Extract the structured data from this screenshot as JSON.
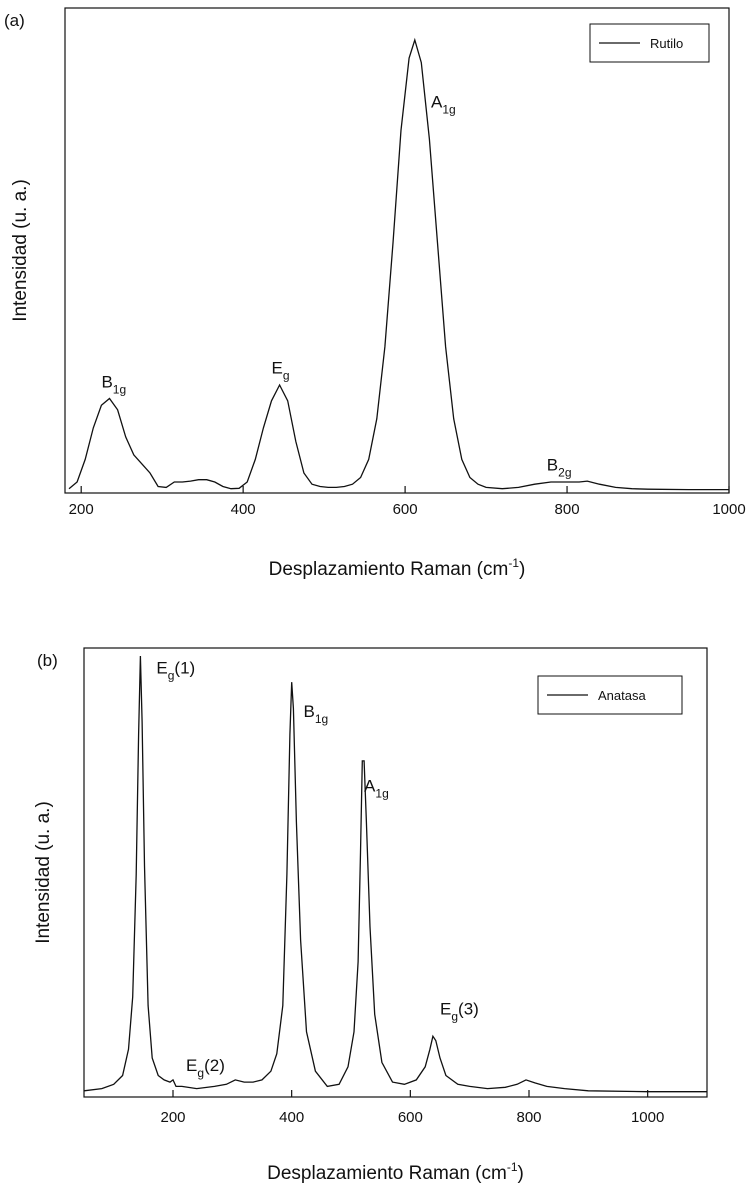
{
  "chart_data": [
    {
      "panel": "(a)",
      "type": "line",
      "xlabel": "Desplazamiento Raman (cm",
      "xlabel_sup": "-1",
      "xlabel_end": ")",
      "ylabel": "Intensidad (u. a.)",
      "xlim": [
        180,
        1000
      ],
      "ylim": [
        0,
        100
      ],
      "xticks": [
        200,
        400,
        600,
        800,
        1000
      ],
      "grid": false,
      "legend": "top-right",
      "series": [
        {
          "name": "Rutilo",
          "x": [
            185,
            195,
            205,
            215,
            225,
            235,
            245,
            255,
            265,
            275,
            285,
            295,
            305,
            315,
            325,
            335,
            345,
            355,
            365,
            375,
            385,
            395,
            405,
            415,
            425,
            435,
            445,
            455,
            465,
            475,
            485,
            495,
            505,
            515,
            525,
            535,
            545,
            555,
            565,
            575,
            585,
            595,
            605,
            612,
            620,
            630,
            640,
            650,
            660,
            670,
            680,
            690,
            700,
            720,
            740,
            760,
            780,
            800,
            815,
            825,
            840,
            860,
            880,
            900,
            950,
            1000
          ],
          "y": [
            0.5,
            2,
            7,
            14,
            19,
            20.5,
            18,
            12,
            8,
            6,
            4,
            1,
            0.8,
            2,
            2,
            2.2,
            2.5,
            2.5,
            2,
            1,
            0.5,
            0.6,
            2,
            7,
            14,
            20,
            23.5,
            20,
            11,
            4,
            1.5,
            1,
            0.8,
            0.8,
            1,
            1.5,
            3,
            7,
            16,
            32,
            55,
            80,
            96,
            100,
            95,
            78,
            55,
            32,
            16,
            7,
            3,
            1.5,
            0.8,
            0.5,
            0.8,
            1.5,
            2,
            2,
            2,
            2.2,
            1.5,
            0.8,
            0.5,
            0.4,
            0.3,
            0.3
          ]
        }
      ],
      "annotations": [
        {
          "base": "B",
          "sub": "1g",
          "x": 225,
          "y": 23
        },
        {
          "base": "E",
          "sub": "g",
          "x": 435,
          "y": 26
        },
        {
          "base": "A",
          "sub": "1g",
          "x": 632,
          "y": 85
        },
        {
          "base": "B",
          "sub": "2g",
          "x": 775,
          "y": 4.5
        }
      ]
    },
    {
      "panel": "(b)",
      "type": "line",
      "xlabel": "Desplazamiento Raman (cm",
      "xlabel_sup": "-1",
      "xlabel_end": ")",
      "ylabel": "Intensidad (u. a.)",
      "xlim": [
        50,
        1100
      ],
      "ylim": [
        0,
        100
      ],
      "xticks": [
        200,
        400,
        600,
        800,
        1000
      ],
      "grid": false,
      "legend": "top-right",
      "series": [
        {
          "name": "Anatasa",
          "x": [
            50,
            80,
            100,
            115,
            125,
            132,
            138,
            142,
            145,
            148,
            152,
            158,
            165,
            175,
            185,
            195,
            200,
            205,
            215,
            240,
            270,
            290,
            305,
            320,
            335,
            350,
            365,
            375,
            385,
            392,
            397,
            400,
            403,
            408,
            415,
            425,
            440,
            460,
            480,
            495,
            505,
            512,
            516,
            519,
            522,
            526,
            532,
            540,
            552,
            570,
            590,
            610,
            625,
            633,
            638,
            643,
            650,
            660,
            680,
            700,
            730,
            760,
            780,
            795,
            810,
            830,
            860,
            900,
            1000,
            1100
          ],
          "y": [
            0.5,
            1,
            2,
            4,
            10,
            22,
            50,
            82,
            100,
            85,
            52,
            20,
            8,
            4,
            3,
            2.5,
            3,
            1.5,
            1.5,
            1,
            1.5,
            2,
            3,
            2.5,
            2.5,
            3,
            5,
            9,
            20,
            50,
            82,
            94,
            88,
            62,
            35,
            14,
            5,
            1.5,
            2,
            6,
            14,
            30,
            55,
            76,
            76,
            62,
            38,
            18,
            7,
            2.5,
            2,
            3,
            6,
            10,
            13,
            12,
            8,
            4,
            2,
            1.5,
            1,
            1.3,
            2,
            3,
            2.3,
            1.5,
            1,
            0.5,
            0.3,
            0.3
          ]
        }
      ],
      "annotations": [
        {
          "base": "E",
          "sub": "g",
          "suffix": "(1)",
          "x": 172,
          "y": 96
        },
        {
          "base": "B",
          "sub": "1g",
          "x": 420,
          "y": 86
        },
        {
          "base": "A",
          "sub": "1g",
          "x": 522,
          "y": 69
        },
        {
          "base": "E",
          "sub": "g",
          "suffix": "(2)",
          "x": 222,
          "y": 5
        },
        {
          "base": "E",
          "sub": "g",
          "suffix": "(3)",
          "x": 650,
          "y": 18
        }
      ]
    }
  ]
}
